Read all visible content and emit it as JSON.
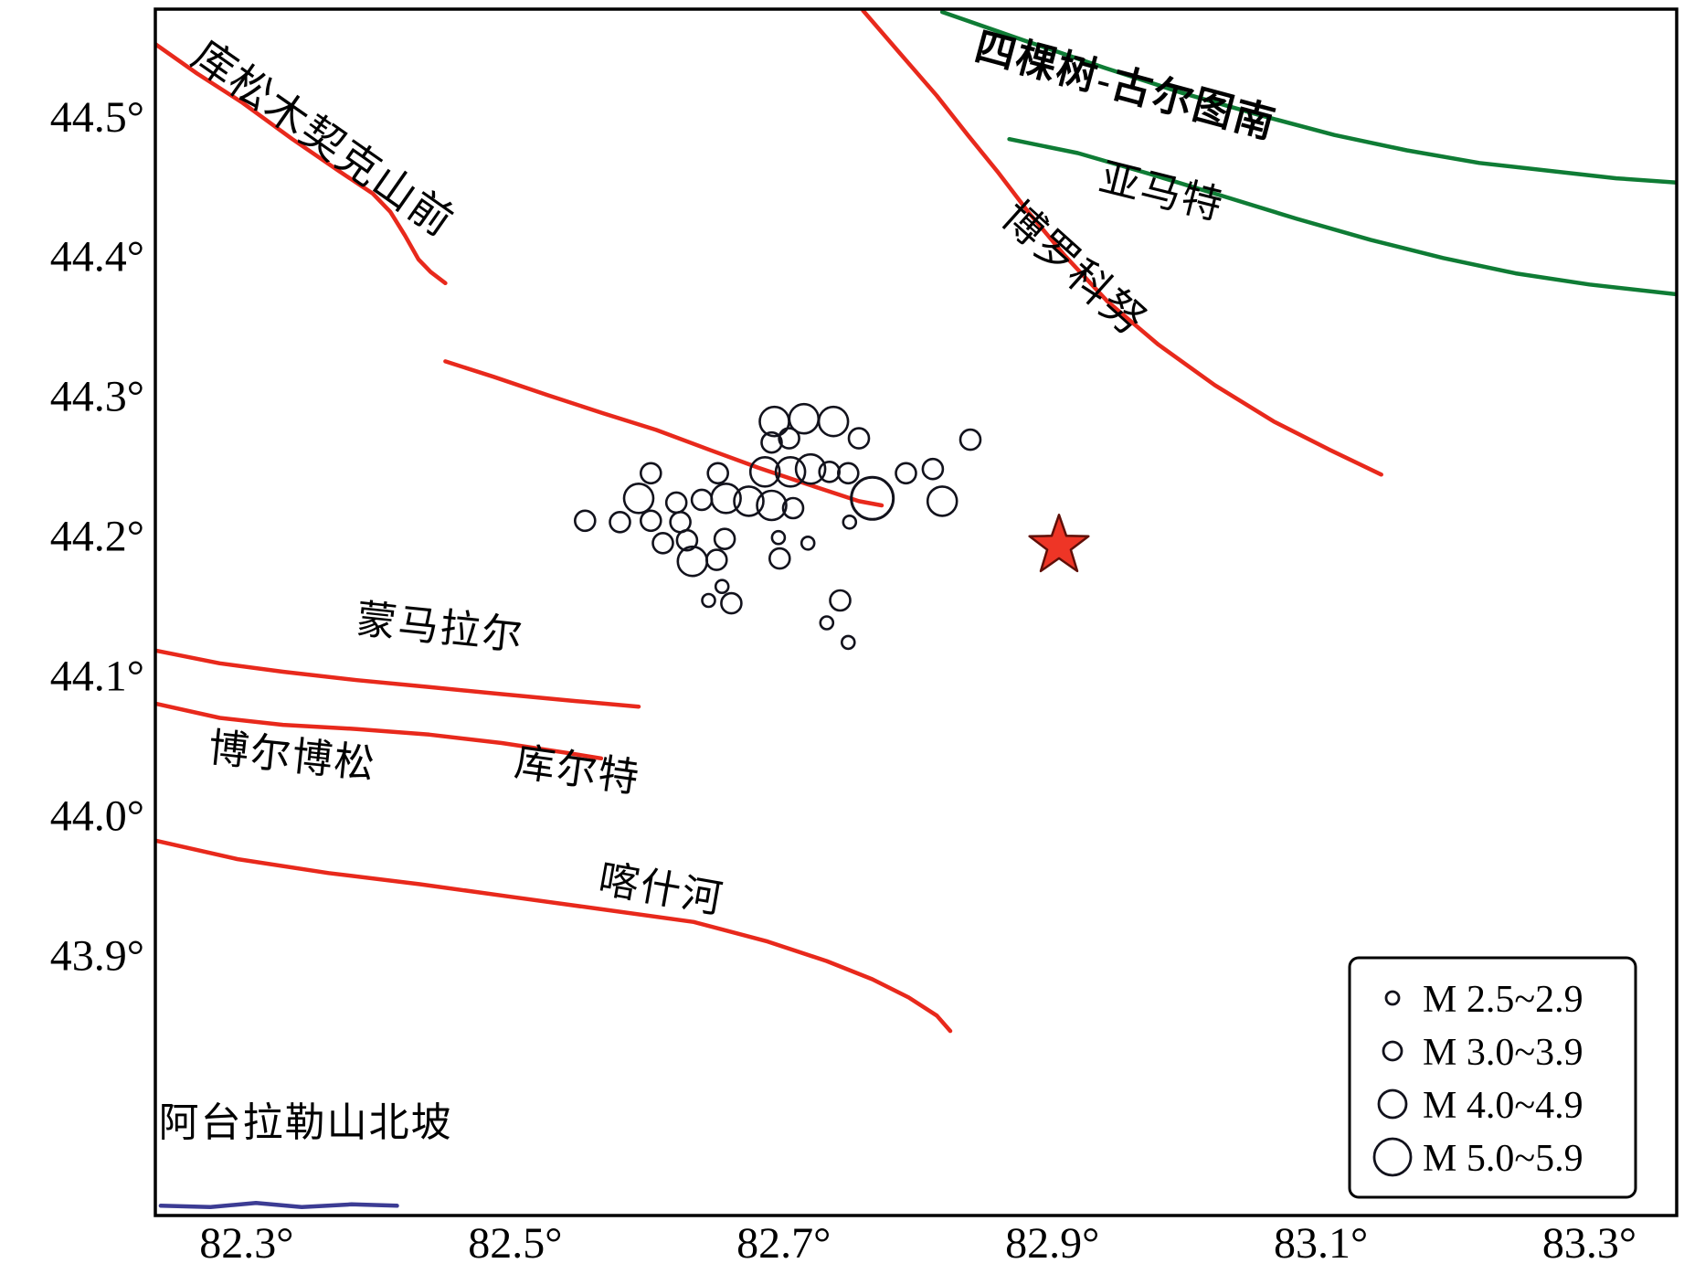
{
  "chart_data": {
    "type": "scatter",
    "title": "",
    "description": "Seismotectonic map: fault traces with Chinese names, earthquake epicenters scaled by magnitude, and a red star mainshock",
    "axes": {
      "xlabel": "",
      "ylabel": "",
      "lon_range": [
        82.232,
        83.365
      ],
      "lat_range": [
        43.714,
        44.577
      ],
      "grid": false,
      "x": [
        {
          "value": 82.3,
          "label": "82.3°"
        },
        {
          "value": 82.5,
          "label": "82.5°"
        },
        {
          "value": 82.7,
          "label": "82.7°"
        },
        {
          "value": 82.9,
          "label": "82.9°"
        },
        {
          "value": 83.1,
          "label": "83.1°"
        },
        {
          "value": 83.3,
          "label": "83.3°"
        }
      ],
      "y": [
        {
          "value": 44.5,
          "label": "44.5°"
        },
        {
          "value": 44.4,
          "label": "44.4°"
        },
        {
          "value": 44.3,
          "label": "44.3°"
        },
        {
          "value": 44.2,
          "label": "44.2°"
        },
        {
          "value": 44.1,
          "label": "44.1°"
        },
        {
          "value": 44.0,
          "label": "44.0°"
        },
        {
          "value": 43.9,
          "label": "43.9°"
        }
      ]
    },
    "colors": {
      "fault_red": "#e8291c",
      "fault_green": "#0f7c35",
      "fault_purple": "#3c3c94",
      "epicenter_stroke": "#12121c",
      "star_fill": "#ee3526",
      "star_stroke": "#5f0f08",
      "border": "#000000",
      "background": "#ffffff"
    },
    "faults": [
      {
        "id": "kusongmuqike-shanqian",
        "color": "fault_red",
        "labels": [
          {
            "text": "库松木契克山前",
            "lon": 82.351,
            "lat": 44.476,
            "rotation": 35,
            "size": 46,
            "bold": false
          }
        ],
        "points": [
          [
            82.232,
            44.552
          ],
          [
            82.263,
            44.531
          ],
          [
            82.297,
            44.51
          ],
          [
            82.334,
            44.484
          ],
          [
            82.369,
            44.461
          ],
          [
            82.394,
            44.445
          ],
          [
            82.407,
            44.432
          ],
          [
            82.418,
            44.415
          ],
          [
            82.428,
            44.398
          ],
          [
            82.437,
            44.389
          ],
          [
            82.448,
            44.381
          ]
        ]
      },
      {
        "id": "central-unnamed",
        "color": "fault_red",
        "labels": [],
        "points": [
          [
            82.448,
            44.325
          ],
          [
            82.484,
            44.314
          ],
          [
            82.524,
            44.301
          ],
          [
            82.565,
            44.288
          ],
          [
            82.605,
            44.276
          ],
          [
            82.644,
            44.262
          ],
          [
            82.681,
            44.249
          ],
          [
            82.718,
            44.237
          ],
          [
            82.756,
            44.225
          ],
          [
            82.773,
            44.222
          ]
        ]
      },
      {
        "id": "boluokenu",
        "color": "fault_red",
        "labels": [
          {
            "text": "博罗科努",
            "lon": 82.909,
            "lat": 44.384,
            "rotation": 42,
            "size": 46,
            "bold": false
          }
        ],
        "points": [
          [
            82.759,
            44.576
          ],
          [
            82.786,
            44.546
          ],
          [
            82.814,
            44.515
          ],
          [
            82.837,
            44.487
          ],
          [
            82.859,
            44.461
          ],
          [
            82.882,
            44.432
          ],
          [
            82.909,
            44.401
          ],
          [
            82.941,
            44.368
          ],
          [
            82.979,
            44.337
          ],
          [
            83.021,
            44.308
          ],
          [
            83.065,
            44.282
          ],
          [
            83.106,
            44.262
          ],
          [
            83.145,
            44.244
          ]
        ]
      },
      {
        "id": "sikeshu-guertunan",
        "color": "fault_green",
        "labels": [
          {
            "text": "四棵树-古尔图南",
            "lon": 82.952,
            "lat": 44.513,
            "rotation": 15,
            "size": 44,
            "bold": true
          }
        ],
        "points": [
          [
            82.818,
            44.575
          ],
          [
            82.878,
            44.555
          ],
          [
            82.939,
            44.535
          ],
          [
            82.997,
            44.517
          ],
          [
            83.055,
            44.501
          ],
          [
            83.11,
            44.487
          ],
          [
            83.164,
            44.476
          ],
          [
            83.218,
            44.467
          ],
          [
            83.273,
            44.461
          ],
          [
            83.32,
            44.456
          ],
          [
            83.365,
            44.453
          ]
        ]
      },
      {
        "id": "yamate",
        "color": "fault_green",
        "labels": [
          {
            "text": "亚马特",
            "lon": 82.979,
            "lat": 44.437,
            "rotation": 14,
            "size": 44,
            "bold": false
          }
        ],
        "points": [
          [
            82.868,
            44.484
          ],
          [
            82.919,
            44.474
          ],
          [
            82.973,
            44.459
          ],
          [
            83.028,
            44.443
          ],
          [
            83.082,
            44.427
          ],
          [
            83.137,
            44.412
          ],
          [
            83.191,
            44.399
          ],
          [
            83.245,
            44.388
          ],
          [
            83.3,
            44.38
          ],
          [
            83.365,
            44.373
          ]
        ]
      },
      {
        "id": "mengmalaer",
        "color": "fault_red",
        "labels": [
          {
            "text": "蒙马拉尔",
            "lon": 82.443,
            "lat": 44.125,
            "rotation": 6,
            "size": 44,
            "bold": false
          }
        ],
        "points": [
          [
            82.233,
            44.118
          ],
          [
            82.28,
            44.109
          ],
          [
            82.327,
            44.103
          ],
          [
            82.382,
            44.097
          ],
          [
            82.436,
            44.092
          ],
          [
            82.49,
            44.087
          ],
          [
            82.545,
            44.082
          ],
          [
            82.592,
            44.078
          ]
        ]
      },
      {
        "id": "boerbosong-kuerte",
        "color": "fault_red",
        "labels": [
          {
            "text": "博尔博松",
            "lon": 82.333,
            "lat": 44.033,
            "rotation": 6,
            "size": 44,
            "bold": false
          },
          {
            "text": "库尔特",
            "lon": 82.545,
            "lat": 44.023,
            "rotation": 8,
            "size": 44,
            "bold": false
          }
        ],
        "points": [
          [
            82.233,
            44.08
          ],
          [
            82.28,
            44.07
          ],
          [
            82.327,
            44.065
          ],
          [
            82.382,
            44.062
          ],
          [
            82.436,
            44.058
          ],
          [
            82.49,
            44.052
          ],
          [
            82.538,
            44.045
          ],
          [
            82.564,
            44.041
          ]
        ]
      },
      {
        "id": "kashihe",
        "color": "fault_red",
        "labels": [
          {
            "text": "喀什河",
            "lon": 82.607,
            "lat": 43.938,
            "rotation": 10,
            "size": 44,
            "bold": false
          }
        ],
        "points": [
          [
            82.233,
            43.982
          ],
          [
            82.293,
            43.969
          ],
          [
            82.361,
            43.959
          ],
          [
            82.429,
            43.951
          ],
          [
            82.497,
            43.942
          ],
          [
            82.565,
            43.933
          ],
          [
            82.633,
            43.924
          ],
          [
            82.688,
            43.91
          ],
          [
            82.732,
            43.896
          ],
          [
            82.766,
            43.883
          ],
          [
            82.793,
            43.87
          ],
          [
            82.814,
            43.857
          ],
          [
            82.824,
            43.846
          ]
        ]
      },
      {
        "id": "atailale-shanbeipo",
        "color": "fault_purple",
        "labels": [
          {
            "text": "阿台拉勒山北坡",
            "lon": 82.344,
            "lat": 43.771,
            "rotation": 0,
            "size": 44,
            "bold": false
          }
        ],
        "points": [
          [
            82.236,
            43.721
          ],
          [
            82.273,
            43.72
          ],
          [
            82.307,
            43.723
          ],
          [
            82.341,
            43.72
          ],
          [
            82.378,
            43.722
          ],
          [
            82.412,
            43.721
          ]
        ]
      }
    ],
    "magnitude_classes": {
      "c1": {
        "label": "M 2.5~2.9",
        "radius": 7
      },
      "c2": {
        "label": "M 3.0~3.9",
        "radius": 11
      },
      "c3": {
        "label": "M 4.0~4.9",
        "radius": 16
      },
      "c4": {
        "label": "M 5.0~5.9",
        "radius": 23
      }
    },
    "earthquakes": [
      [
        82.693,
        44.282,
        "c3"
      ],
      [
        82.715,
        44.284,
        "c3"
      ],
      [
        82.737,
        44.282,
        "c3"
      ],
      [
        82.691,
        44.267,
        "c2"
      ],
      [
        82.704,
        44.27,
        "c2"
      ],
      [
        82.756,
        44.27,
        "c2"
      ],
      [
        82.839,
        44.269,
        "c2"
      ],
      [
        82.651,
        44.245,
        "c2"
      ],
      [
        82.686,
        44.246,
        "c3"
      ],
      [
        82.705,
        44.246,
        "c3"
      ],
      [
        82.72,
        44.248,
        "c3"
      ],
      [
        82.734,
        44.246,
        "c2"
      ],
      [
        82.748,
        44.245,
        "c2"
      ],
      [
        82.791,
        44.245,
        "c2"
      ],
      [
        82.811,
        44.248,
        "c2"
      ],
      [
        82.601,
        44.245,
        "c2"
      ],
      [
        82.766,
        44.227,
        "c4"
      ],
      [
        82.818,
        44.225,
        "c3"
      ],
      [
        82.592,
        44.227,
        "c3"
      ],
      [
        82.62,
        44.224,
        "c2"
      ],
      [
        82.639,
        44.226,
        "c2"
      ],
      [
        82.657,
        44.227,
        "c3"
      ],
      [
        82.674,
        44.225,
        "c3"
      ],
      [
        82.691,
        44.222,
        "c3"
      ],
      [
        82.707,
        44.22,
        "c2"
      ],
      [
        82.552,
        44.211,
        "c2"
      ],
      [
        82.578,
        44.21,
        "c2"
      ],
      [
        82.601,
        44.211,
        "c2"
      ],
      [
        82.623,
        44.21,
        "c2"
      ],
      [
        82.61,
        44.195,
        "c2"
      ],
      [
        82.628,
        44.197,
        "c2"
      ],
      [
        82.656,
        44.198,
        "c2"
      ],
      [
        82.696,
        44.199,
        "c1"
      ],
      [
        82.718,
        44.195,
        "c1"
      ],
      [
        82.749,
        44.21,
        "c1"
      ],
      [
        82.632,
        44.182,
        "c3"
      ],
      [
        82.65,
        44.183,
        "c2"
      ],
      [
        82.697,
        44.184,
        "c2"
      ],
      [
        82.654,
        44.164,
        "c1"
      ],
      [
        82.661,
        44.152,
        "c2"
      ],
      [
        82.644,
        44.154,
        "c1"
      ],
      [
        82.742,
        44.154,
        "c2"
      ],
      [
        82.732,
        44.138,
        "c1"
      ],
      [
        82.748,
        44.124,
        "c1"
      ]
    ],
    "mainshock": {
      "lon": 82.905,
      "lat": 44.193,
      "symbol": "star"
    },
    "legend": {
      "position": "bottom-right",
      "items": [
        {
          "class": "c1",
          "label": "M 2.5~2.9",
          "radius": 7
        },
        {
          "class": "c2",
          "label": "M 3.0~3.9",
          "radius": 10
        },
        {
          "class": "c3",
          "label": "M 4.0~4.9",
          "radius": 15
        },
        {
          "class": "c4",
          "label": "M 5.0~5.9",
          "radius": 20
        }
      ]
    }
  }
}
